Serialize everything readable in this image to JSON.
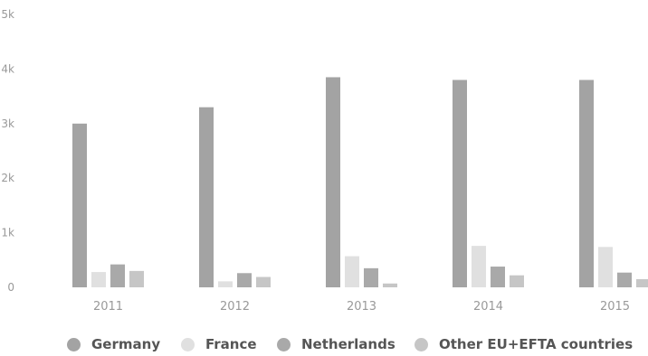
{
  "chart_data": {
    "type": "bar",
    "categories": [
      "2011",
      "2012",
      "2013",
      "2014",
      "2015"
    ],
    "y_ticks": [
      "0",
      "1k",
      "2k",
      "3k",
      "4k",
      "5k"
    ],
    "ylim": [
      0,
      5000
    ],
    "grid": false,
    "legend_position": "bottom",
    "series": [
      {
        "name": "Germany",
        "color": "#a3a3a3",
        "values": [
          3000,
          3300,
          3850,
          3800,
          3800
        ]
      },
      {
        "name": "France",
        "color": "#e0e0e0",
        "values": [
          280,
          110,
          570,
          760,
          740
        ]
      },
      {
        "name": "Netherlands",
        "color": "#a9a9a9",
        "values": [
          420,
          260,
          350,
          380,
          270
        ]
      },
      {
        "name": "Other EU+EFTA countries",
        "color": "#c6c6c6",
        "values": [
          300,
          190,
          70,
          220,
          150
        ]
      }
    ]
  }
}
